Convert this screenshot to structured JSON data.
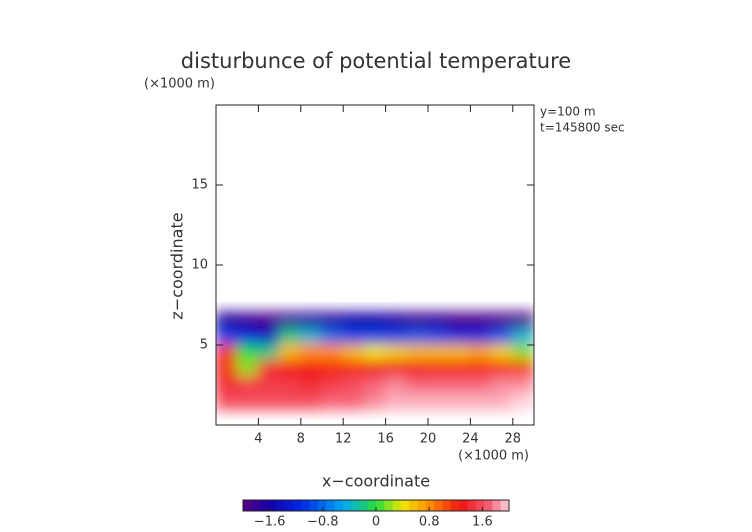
{
  "chart_data": {
    "type": "contour",
    "title": "disturbunce of potential temperature",
    "y_unit": "(×1000 m)",
    "x_unit": "(×1000 m)",
    "annotations": [
      "y=100 m",
      "t=145800 sec"
    ],
    "xlabel": "x−coordinate",
    "ylabel": "z−coordinate",
    "xlim": [
      0,
      30
    ],
    "ylim": [
      0,
      20
    ],
    "xticks": [
      4,
      8,
      12,
      16,
      20,
      24,
      28
    ],
    "yticks": [
      5,
      10,
      15
    ],
    "x": [
      1,
      3,
      5,
      7,
      9,
      11,
      13,
      15,
      17,
      19,
      21,
      23,
      25,
      27,
      29
    ],
    "z": [
      6.5,
      5.5,
      4.5,
      3.5,
      2.5,
      1.5
    ],
    "values": [
      [
        -1.7,
        -1.8,
        -1.9,
        -1.8,
        -1.7,
        -1.7,
        -1.6,
        -1.6,
        -1.7,
        -1.8,
        -1.8,
        -1.9,
        -1.9,
        -1.9,
        -1.9
      ],
      [
        -1.0,
        -1.2,
        -1.4,
        -0.2,
        -0.4,
        -0.8,
        -1.0,
        -1.0,
        -1.0,
        -0.9,
        -1.0,
        -1.2,
        -1.2,
        -0.9,
        -0.4
      ],
      [
        1.4,
        0.0,
        -0.2,
        0.6,
        0.8,
        0.8,
        0.6,
        0.4,
        0.5,
        0.6,
        0.6,
        0.6,
        0.7,
        0.5,
        0.2
      ],
      [
        1.2,
        0.2,
        1.4,
        1.3,
        1.3,
        1.2,
        1.2,
        1.3,
        1.3,
        1.3,
        1.2,
        1.2,
        1.2,
        1.2,
        1.1
      ],
      [
        1.4,
        1.5,
        1.5,
        1.5,
        1.4,
        1.5,
        1.6,
        1.7,
        1.8,
        1.7,
        1.7,
        1.7,
        1.7,
        1.8,
        1.8
      ],
      [
        1.6,
        1.6,
        1.6,
        1.6,
        1.6,
        1.7,
        1.7,
        1.8,
        1.9,
        1.9,
        1.9,
        1.9,
        1.9,
        1.9,
        2.0
      ]
    ],
    "clim": [
      -2,
      2
    ],
    "cticks": [
      {
        "value": -1.6,
        "label": "−1.6"
      },
      {
        "value": -0.8,
        "label": "−0.8"
      },
      0,
      0.8,
      1.6
    ]
  }
}
